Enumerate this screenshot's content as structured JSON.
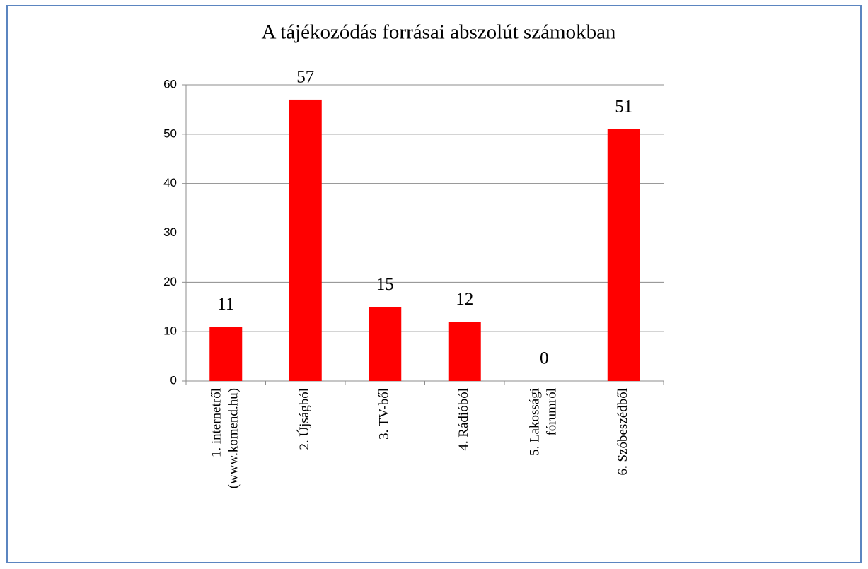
{
  "chart_data": {
    "type": "bar",
    "title": "A tájékozódás forrásai abszolút számokban",
    "categories": [
      [
        "1. internetről",
        "(www.komend.hu)"
      ],
      [
        "2.  Újságból"
      ],
      [
        "3. TV-ből"
      ],
      [
        "4. Rádióból"
      ],
      [
        "5. Lakossági",
        "fórumról"
      ],
      [
        "6. Szóbeszédből"
      ]
    ],
    "values": [
      11,
      57,
      15,
      12,
      0,
      51
    ],
    "color": "#ff0000",
    "ylim": [
      0,
      60
    ],
    "yticks": [
      0,
      10,
      20,
      30,
      40,
      50,
      60
    ],
    "grid": true
  }
}
